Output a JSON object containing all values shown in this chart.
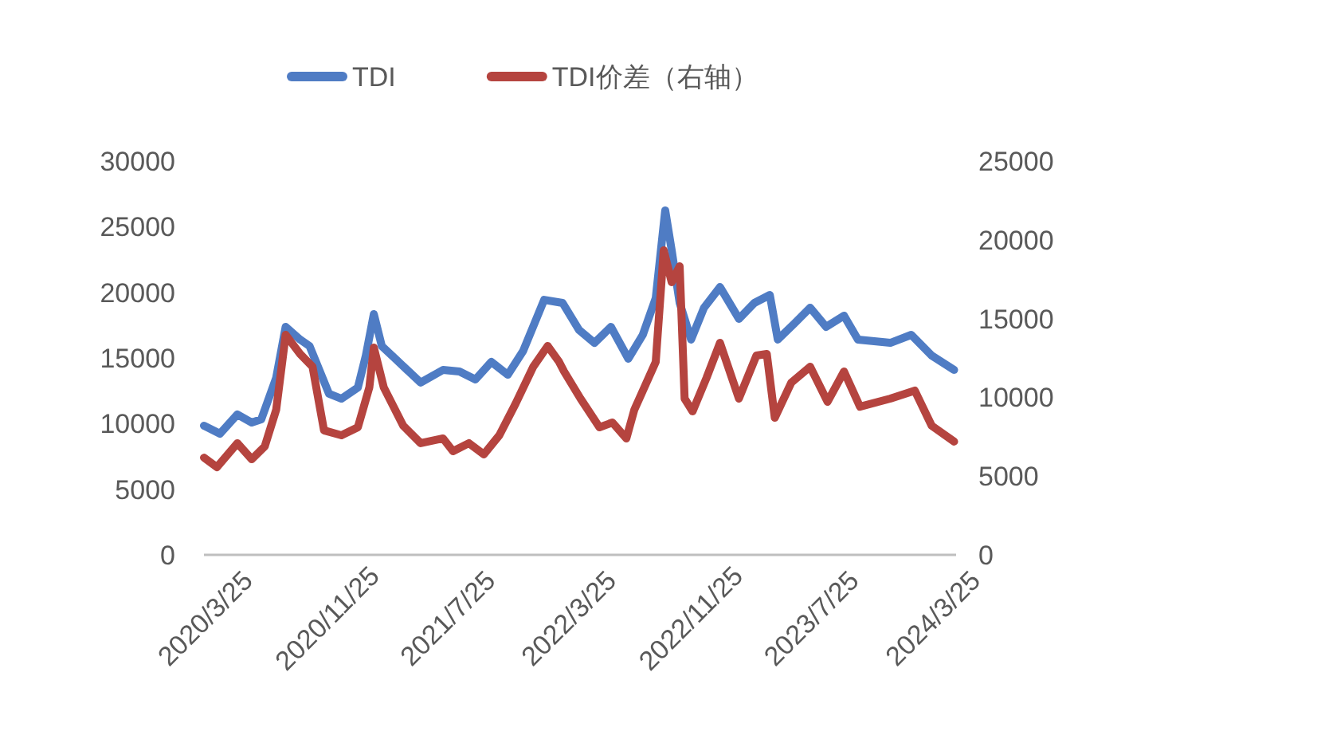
{
  "chart_data": {
    "type": "line",
    "legend": "top",
    "grid": false,
    "marker": "none",
    "line_style": "solid",
    "xlim": [
      "2020-03-22",
      "2024-05-10"
    ],
    "xticks": [
      {
        "value": "2020-03-25",
        "label": "2020/3/25"
      },
      {
        "value": "2020-11-25",
        "label": "2020/11/25"
      },
      {
        "value": "2021-07-25",
        "label": "2021/7/25"
      },
      {
        "value": "2022-03-25",
        "label": "2022/3/25"
      },
      {
        "value": "2022-11-25",
        "label": "2022/11/25"
      },
      {
        "value": "2023-07-25",
        "label": "2023/7/25"
      },
      {
        "value": "2024-03-25",
        "label": "2024/3/25"
      }
    ],
    "ylim": [
      0,
      30000
    ],
    "yticks": [
      0,
      5000,
      10000,
      15000,
      20000,
      25000,
      30000
    ],
    "y2lim": [
      0,
      25000
    ],
    "y2ticks": [
      0,
      5000,
      10000,
      15000,
      20000,
      25000
    ],
    "series": [
      {
        "name": "TDI",
        "color": "#4f7cc4",
        "x": [
          "2020-03-22",
          "2020-04-23",
          "2020-05-28",
          "2020-06-26",
          "2020-07-15",
          "2020-08-14",
          "2020-09-02",
          "2020-10-01",
          "2020-10-20",
          "2020-11-28",
          "2020-12-23",
          "2021-01-25",
          "2021-02-10",
          "2021-02-26",
          "2021-03-14",
          "2021-04-10",
          "2021-05-31",
          "2021-07-15",
          "2021-08-17",
          "2021-09-18",
          "2021-10-20",
          "2021-11-22",
          "2021-12-23",
          "2022-02-03",
          "2022-03-12",
          "2022-04-14",
          "2022-05-15",
          "2022-06-17",
          "2022-07-22",
          "2022-08-20",
          "2022-09-15",
          "2022-10-04",
          "2022-10-17",
          "2022-11-02",
          "2022-11-25",
          "2022-12-21",
          "2023-01-22",
          "2023-03-01",
          "2023-04-01",
          "2023-05-02",
          "2023-05-18",
          "2023-06-20",
          "2023-07-22",
          "2023-08-23",
          "2023-09-28",
          "2023-10-26",
          "2023-12-30",
          "2024-02-10",
          "2024-03-22",
          "2024-05-06"
        ],
        "values": [
          9840,
          9230,
          10690,
          10080,
          10320,
          13480,
          17370,
          16400,
          15910,
          12270,
          11900,
          12750,
          15180,
          18340,
          15910,
          14940,
          13120,
          14090,
          13970,
          13360,
          14700,
          13720,
          15550,
          19430,
          19190,
          17130,
          16150,
          17370,
          14940,
          16760,
          19560,
          26240,
          23200,
          19190,
          16400,
          18830,
          20400,
          17980,
          19190,
          19800,
          16400,
          17610,
          18830,
          17370,
          18220,
          16400,
          16150,
          16760,
          15180,
          14090
        ]
      },
      {
        "name": "TDI价差（右轴）",
        "color": "#b5443f",
        "axis": "y2",
        "x": [
          "2020-03-22",
          "2020-04-17",
          "2020-05-28",
          "2020-06-26",
          "2020-07-22",
          "2020-08-14",
          "2020-09-02",
          "2020-10-01",
          "2020-10-26",
          "2020-11-18",
          "2020-12-23",
          "2021-01-25",
          "2021-02-17",
          "2021-02-26",
          "2021-03-18",
          "2021-04-26",
          "2021-05-31",
          "2021-07-15",
          "2021-08-04",
          "2021-09-05",
          "2021-10-05",
          "2021-11-05",
          "2021-12-08",
          "2022-01-12",
          "2022-02-10",
          "2022-03-05",
          "2022-03-15",
          "2022-04-17",
          "2022-05-25",
          "2022-06-20",
          "2022-07-18",
          "2022-08-03",
          "2022-09-15",
          "2022-10-01",
          "2022-10-17",
          "2022-11-02",
          "2022-11-12",
          "2022-11-28",
          "2022-12-26",
          "2023-01-22",
          "2023-03-01",
          "2023-04-05",
          "2023-04-26",
          "2023-05-12",
          "2023-06-14",
          "2023-07-22",
          "2023-08-26",
          "2023-09-28",
          "2023-10-30",
          "2023-12-30",
          "2024-02-17",
          "2024-03-22",
          "2024-05-06"
        ],
        "values": [
          6170,
          5570,
          7090,
          6070,
          6880,
          9210,
          13970,
          12750,
          11940,
          7900,
          7590,
          8100,
          10630,
          13160,
          10630,
          8200,
          7090,
          7390,
          6580,
          7090,
          6380,
          7590,
          9620,
          11940,
          13260,
          12250,
          11640,
          9920,
          8100,
          8400,
          7390,
          9210,
          12250,
          19330,
          17310,
          18320,
          9920,
          9110,
          11240,
          13460,
          9920,
          12650,
          12750,
          8700,
          10930,
          11940,
          9720,
          11640,
          9410,
          9920,
          10430,
          8200,
          7190
        ]
      }
    ]
  }
}
